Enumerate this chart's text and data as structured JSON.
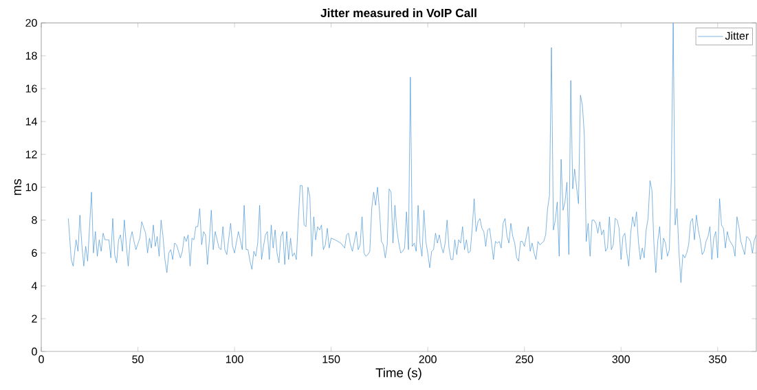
{
  "chart_data": {
    "type": "line",
    "title": "Jitter measured in VoIP Call",
    "xlabel": "Time (s)",
    "ylabel": "ms",
    "x": [
      14,
      15.5,
      16.5,
      18,
      19,
      20,
      21,
      22,
      23,
      24,
      26,
      27,
      28,
      29,
      30,
      31,
      32,
      33,
      35,
      36,
      37,
      38,
      39,
      40,
      41,
      42,
      43,
      44,
      45,
      46,
      47,
      48,
      49,
      51,
      52,
      54,
      55,
      56,
      57,
      58,
      59,
      60,
      61,
      62,
      63,
      64,
      65,
      66,
      67,
      68,
      69,
      70,
      72,
      73,
      74,
      75,
      76,
      77,
      78,
      79,
      80,
      81,
      82,
      83,
      84,
      85,
      86,
      87,
      88,
      89,
      90,
      91,
      92,
      93,
      94,
      95,
      96,
      98,
      99,
      100,
      102,
      103,
      104,
      105,
      106,
      107,
      108,
      109,
      110,
      111,
      112,
      113,
      114,
      115,
      116,
      117,
      118,
      119,
      120,
      121,
      122,
      123,
      124,
      125,
      126,
      127,
      128,
      129,
      130,
      131,
      132,
      133,
      134,
      135,
      136,
      137,
      138,
      139,
      140,
      141,
      142,
      143,
      144,
      145,
      146,
      147,
      148,
      149,
      150,
      152,
      155,
      157,
      158,
      159,
      160,
      161,
      163,
      164,
      165,
      166,
      167,
      168,
      169,
      170,
      171,
      172,
      173,
      174,
      175,
      176,
      177,
      178,
      179,
      180,
      181,
      182,
      183,
      184,
      185,
      186,
      187,
      188,
      189,
      190,
      191,
      192,
      193,
      194,
      195,
      196,
      197,
      198,
      199,
      200,
      201,
      202,
      203,
      204,
      205,
      206,
      207,
      208,
      209,
      210,
      211,
      212,
      213,
      214,
      215,
      216,
      217,
      218,
      219,
      220,
      221,
      222,
      223,
      224,
      225,
      226,
      227,
      228,
      229,
      230,
      231,
      232,
      233,
      234,
      235,
      236,
      237,
      238,
      239,
      240,
      241,
      242,
      243,
      244,
      245,
      246,
      247,
      248,
      249,
      250,
      251,
      252,
      253,
      254,
      255,
      256,
      257,
      258,
      259,
      260,
      261,
      262,
      263,
      264,
      265,
      266,
      267,
      268,
      269,
      270,
      271,
      272,
      273,
      274,
      275,
      276,
      277,
      278,
      279,
      280,
      281,
      282,
      283,
      284,
      285,
      286,
      287,
      288,
      289,
      290,
      291,
      292,
      293,
      294,
      295,
      296,
      297,
      298,
      299,
      300,
      301,
      302,
      303,
      304,
      305,
      306,
      307,
      308,
      309,
      310,
      311,
      312,
      313,
      314,
      315,
      316,
      317,
      318,
      319,
      320,
      321,
      322,
      323,
      324,
      325,
      326,
      327,
      328,
      329,
      330,
      331,
      332,
      333,
      334,
      335,
      336,
      337,
      338,
      339,
      340,
      341,
      342,
      343,
      344,
      345,
      346,
      347,
      348,
      349,
      350,
      351,
      352,
      353,
      354,
      355,
      356,
      357,
      358,
      359,
      360,
      361,
      362,
      363,
      364,
      365,
      366,
      367,
      368,
      369,
      370
    ],
    "series": [
      {
        "name": "Jitter",
        "color": "#3f8fd2",
        "values": [
          8.1,
          5.6,
          5.2,
          6.8,
          6.1,
          8.3,
          6.5,
          5.2,
          6.4,
          5.5,
          9.7,
          6.0,
          7.3,
          5.8,
          6.8,
          6.1,
          7.2,
          6.8,
          6.8,
          5.7,
          8.1,
          5.9,
          5.4,
          6.8,
          7.1,
          6.1,
          8.0,
          6.5,
          5.2,
          6.8,
          7.3,
          6.7,
          6.2,
          6.9,
          7.9,
          7.2,
          6.0,
          6.9,
          6.3,
          7.7,
          6.4,
          7.0,
          5.8,
          8.0,
          7.0,
          5.6,
          4.8,
          6.0,
          6.2,
          5.6,
          6.6,
          6.5,
          5.7,
          6.1,
          7.0,
          6.7,
          7.1,
          5.2,
          6.9,
          6.8,
          7.6,
          7.6,
          8.7,
          6.5,
          7.3,
          7.1,
          5.3,
          6.8,
          8.6,
          6.2,
          7.3,
          6.8,
          6.3,
          6.2,
          7.6,
          6.2,
          5.9,
          7.8,
          6.4,
          6.0,
          7.3,
          6.8,
          6.2,
          8.9,
          6.2,
          6.2,
          5.5,
          5.0,
          6.1,
          5.8,
          6.6,
          8.9,
          5.6,
          6.4,
          7.1,
          7.3,
          5.6,
          7.7,
          6.3,
          7.4,
          6.0,
          5.4,
          7.0,
          7.3,
          5.3,
          7.3,
          5.6,
          6.9,
          5.8,
          6.0,
          5.6,
          8.0,
          10.1,
          10.1,
          7.7,
          7.6,
          10.0,
          9.4,
          5.8,
          8.2,
          6.8,
          7.6,
          7.4,
          7.7,
          6.2,
          6.5,
          7.5,
          6.3,
          6.9,
          6.8,
          6.6,
          6.3,
          7.1,
          7.2,
          6.5,
          6.1,
          7.3,
          6.2,
          6.5,
          8.2,
          6.0,
          5.8,
          5.9,
          6.1,
          8.7,
          9.7,
          8.9,
          10.0,
          8.6,
          6.7,
          6.5,
          5.7,
          6.5,
          9.9,
          9.7,
          6.6,
          8.9,
          7.4,
          6.6,
          6.0,
          6.1,
          6.3,
          8.5,
          6.2,
          16.7,
          6.4,
          6.6,
          6.1,
          8.9,
          6.6,
          5.8,
          8.6,
          6.7,
          6.0,
          5.1,
          6.1,
          6.2,
          7.2,
          6.6,
          7.1,
          6.4,
          6.0,
          6.6,
          8.0,
          6.3,
          5.6,
          5.6,
          6.8,
          5.9,
          6.8,
          6.6,
          7.6,
          6.2,
          6.8,
          6.0,
          6.1,
          7.5,
          9.3,
          7.3,
          7.9,
          8.1,
          7.5,
          7.3,
          6.4,
          7.4,
          7.5,
          6.6,
          5.6,
          6.7,
          6.6,
          6.7,
          6.3,
          7.8,
          8.1,
          7.0,
          6.6,
          7.8,
          7.0,
          6.6,
          5.7,
          5.5,
          6.7,
          6.7,
          6.4,
          7.0,
          7.6,
          6.1,
          6.6,
          6.0,
          5.6,
          6.7,
          6.5,
          6.6,
          6.7,
          7.1,
          8.7,
          9.5,
          18.5,
          7.4,
          8.0,
          9.1,
          5.8,
          11.7,
          8.6,
          9.1,
          10.3,
          5.9,
          16.5,
          9.9,
          11.1,
          10.0,
          9.0,
          15.6,
          15.0,
          13.2,
          6.7,
          7.8,
          5.8,
          8.0,
          8.0,
          7.8,
          7.2,
          7.9,
          7.1,
          7.4,
          6.1,
          6.3,
          8.2,
          6.2,
          6.5,
          8.1,
          8.0,
          7.5,
          5.6,
          7.0,
          7.2,
          6.0,
          5.2,
          7.2,
          8.2,
          7.6,
          8.5,
          6.7,
          5.6,
          6.3,
          5.7,
          7.4,
          8.1,
          10.4,
          9.8,
          6.6,
          4.8,
          6.7,
          7.6,
          5.6,
          6.9,
          6.6,
          5.8,
          6.2,
          10.4,
          20,
          7.7,
          8.7,
          6.0,
          4.2,
          5.9,
          5.7,
          6.0,
          6.5,
          7.9,
          8.1,
          6.8,
          8.3,
          7.4,
          6.8,
          5.9,
          6.1,
          6.7,
          7.0,
          7.6,
          5.6,
          6.9,
          7.3,
          5.7,
          9.3,
          7.7,
          7.5,
          6.3,
          7.3,
          6.8,
          6.6,
          6.4,
          5.8,
          8.2,
          7.6,
          6.7,
          6.3,
          5.9,
          7.0,
          6.9,
          6.7,
          6.0,
          6.8,
          7.1
        ]
      }
    ],
    "xlim": [
      0,
      370
    ],
    "ylim": [
      0,
      20
    ],
    "xticks": [
      0,
      50,
      100,
      150,
      200,
      250,
      300,
      350
    ],
    "yticks": [
      0,
      2,
      4,
      6,
      8,
      10,
      12,
      14,
      16,
      18,
      20
    ],
    "legend": "top right",
    "marker": "none",
    "line_style": "solid",
    "grid": false
  }
}
